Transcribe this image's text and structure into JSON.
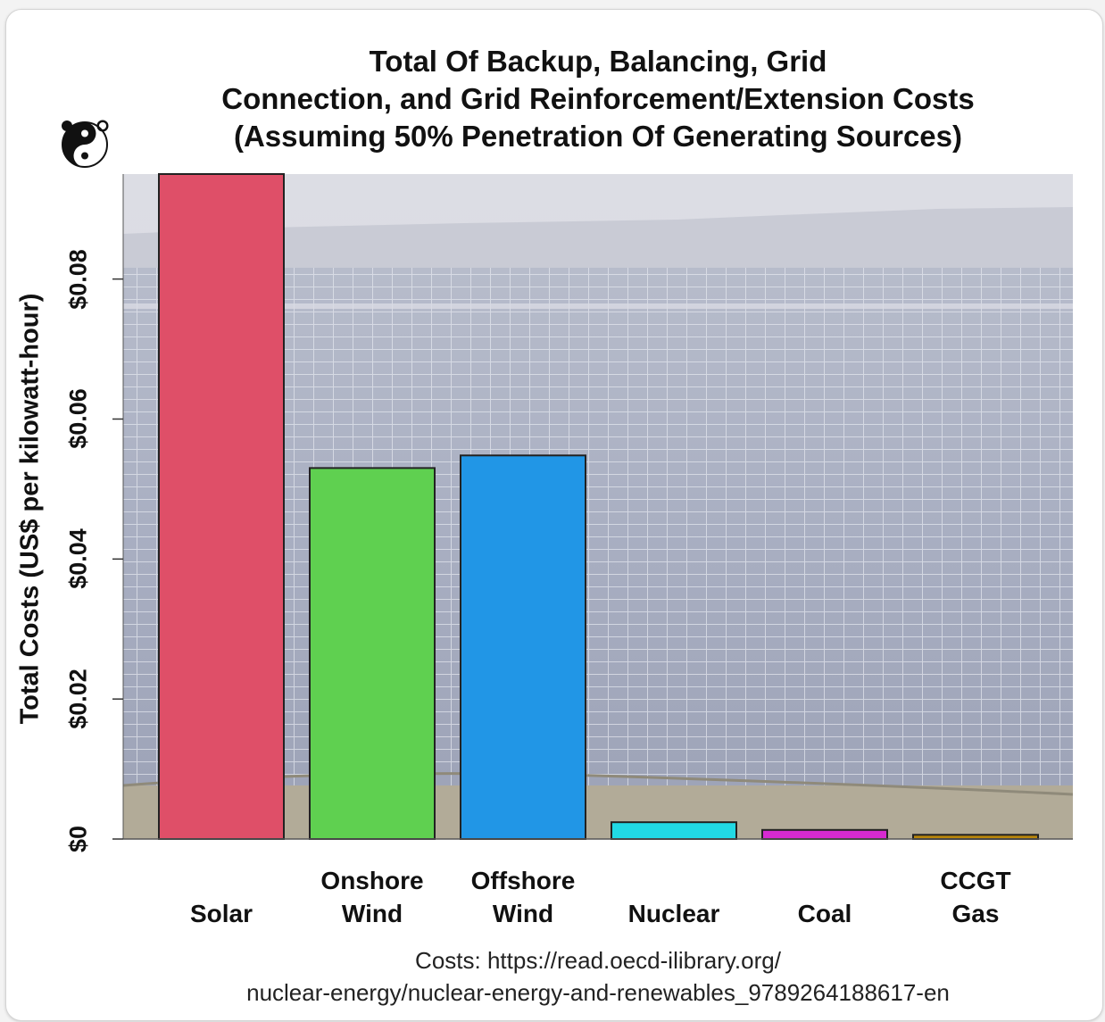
{
  "chart_data": {
    "type": "bar",
    "title_lines": [
      "Total Of Backup, Balancing, Grid",
      "Connection, and Grid Reinforcement/Extension Costs",
      "(Assuming 50% Penetration Of Generating Sources)"
    ],
    "ylabel": "Total Costs (US$ per kilowatt-hour)",
    "xlabel": "",
    "ylim": [
      0,
      0.095
    ],
    "yticks": [
      "$0",
      "$0.02",
      "$0.04",
      "$0.06",
      "$0.08"
    ],
    "ytick_values": [
      0,
      0.02,
      0.04,
      0.06,
      0.08
    ],
    "categories": [
      [
        "Solar"
      ],
      [
        "Onshore",
        "Wind"
      ],
      [
        "Offshore",
        "Wind"
      ],
      [
        "Nuclear"
      ],
      [
        "Coal"
      ],
      [
        "CCGT",
        "Gas"
      ]
    ],
    "values": [
      0.095,
      0.053,
      0.0548,
      0.0024,
      0.0013,
      0.0006
    ],
    "colors": [
      "#df4f68",
      "#5fd050",
      "#2196e6",
      "#21d9e4",
      "#d62ad1",
      "#b8860b"
    ],
    "background": "photo of solar panel farm",
    "grid": false,
    "legend": "none",
    "source_lines": [
      "Costs: https://read.oecd-ilibrary.org/",
      "nuclear-energy/nuclear-energy-and-renewables_9789264188617-en"
    ]
  },
  "logo_icon": "yin-yang-bear-logo-icon"
}
